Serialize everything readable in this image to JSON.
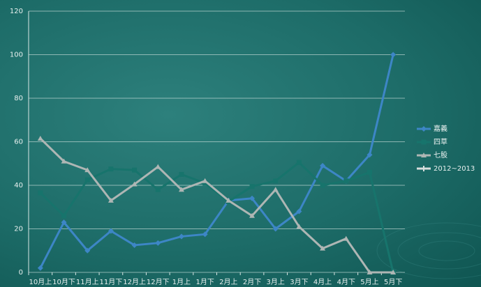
{
  "chart_data": {
    "type": "line",
    "categories": [
      "10月上",
      "10月下",
      "11月上",
      "11月下",
      "12月上",
      "12月下",
      "1月上",
      "1月下",
      "2月上",
      "2月下",
      "3月上",
      "3月下",
      "4月上",
      "4月下",
      "5月上",
      "5月下"
    ],
    "series": [
      {
        "name": "嘉義",
        "color": "#3d86c6",
        "marker": "diamond",
        "values": [
          2,
          23,
          10,
          19,
          12.5,
          13.5,
          16.5,
          17.5,
          33,
          34,
          20,
          28,
          49,
          42,
          54,
          100
        ]
      },
      {
        "name": "四草",
        "color": "#17746c",
        "marker": "square",
        "values": [
          36.5,
          26,
          42.5,
          47.5,
          47,
          38,
          45,
          41,
          32.5,
          39.5,
          42,
          50.5,
          40,
          42,
          46,
          0
        ]
      },
      {
        "name": "七股",
        "color": "#aeb6b4",
        "marker": "triangle",
        "values": [
          61.5,
          51,
          47,
          33,
          40.5,
          48.5,
          38,
          42,
          33,
          26,
          38,
          21,
          11,
          15.5,
          0,
          0
        ]
      },
      {
        "name": "2012~2013",
        "color": "#d8dedd",
        "marker": "cross",
        "values": [
          null,
          null,
          null,
          null,
          null,
          null,
          null,
          null,
          null,
          null,
          null,
          null,
          null,
          null,
          null,
          null
        ]
      }
    ],
    "ylim": [
      0,
      120
    ],
    "yticks": [
      0,
      20,
      40,
      60,
      80,
      100,
      120
    ],
    "grid": true,
    "legend": "right"
  }
}
